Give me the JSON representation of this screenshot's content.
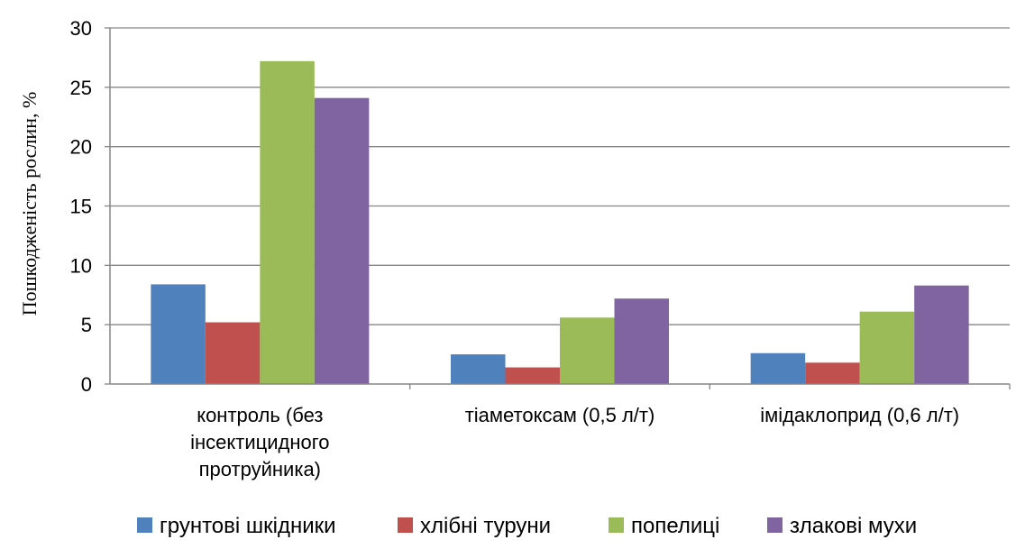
{
  "chart_data": {
    "type": "bar",
    "title": "",
    "xlabel": "",
    "ylabel": "Пошкодженість рослин, %",
    "ylim": [
      0,
      30
    ],
    "yticks": [
      0,
      5,
      10,
      15,
      20,
      25,
      30
    ],
    "grid": true,
    "legend_position": "bottom",
    "categories": [
      [
        "контроль (без",
        "інсектицидного",
        "протруйника)"
      ],
      [
        "тіаметоксам (0,5 л/т)"
      ],
      [
        "імідаклоприд (0,6 л/т)"
      ]
    ],
    "series": [
      {
        "name": "грунтові шкідники",
        "color": "#4F81BD",
        "values": [
          8.4,
          2.5,
          2.6
        ]
      },
      {
        "name": "хлібні туруни",
        "color": "#C0504D",
        "values": [
          5.2,
          1.4,
          1.8
        ]
      },
      {
        "name": "попелиці",
        "color": "#9BBB59",
        "values": [
          27.2,
          5.6,
          6.1
        ]
      },
      {
        "name": "злакові мухи",
        "color": "#8064A2",
        "values": [
          24.1,
          7.2,
          8.3
        ]
      }
    ]
  }
}
